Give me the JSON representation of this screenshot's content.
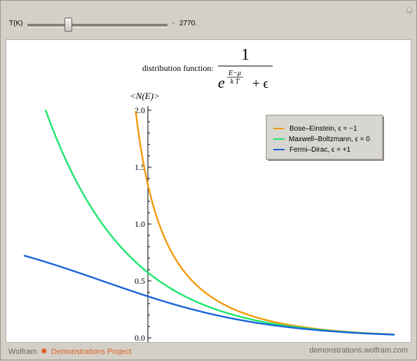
{
  "controls": {
    "param_label": "T(K)",
    "param_value": "2770.",
    "slider_fraction": 0.29
  },
  "formula": {
    "prefix": "distribution function:",
    "numerator": "1",
    "base": "e",
    "exponent_top": "E−μ",
    "exponent_bottom": "k T",
    "tail": "+ ϵ"
  },
  "chart_data": {
    "type": "line",
    "ylabel": "<N(E)>",
    "ylim": [
      0,
      2.0
    ],
    "yticks": [
      "0.0",
      "0.5",
      "1.0",
      "1.5",
      "2.0"
    ],
    "xlim": [
      -0.96,
      3.57
    ],
    "x_unit": "(E−μ)/kT",
    "legend_placement": "top-right",
    "series": [
      {
        "name": "Bose–Einstein, ϵ = −1",
        "epsilon": -1,
        "color": "#f29a0e"
      },
      {
        "name": "Maxwell–Boltzmann, ϵ = 0",
        "epsilon": 0,
        "color": "#1ee66e"
      },
      {
        "name": "Fermi–Dirac, ϵ = +1",
        "epsilon": 1,
        "color": "#1a64d8"
      }
    ]
  },
  "footer": {
    "brand_a": "Wolfram",
    "brand_b": "Demonstrations Project",
    "site": "demonstrations.wolfram.com"
  },
  "colors": {
    "accent": "#e0601e",
    "frame": "#d4d0c8"
  }
}
